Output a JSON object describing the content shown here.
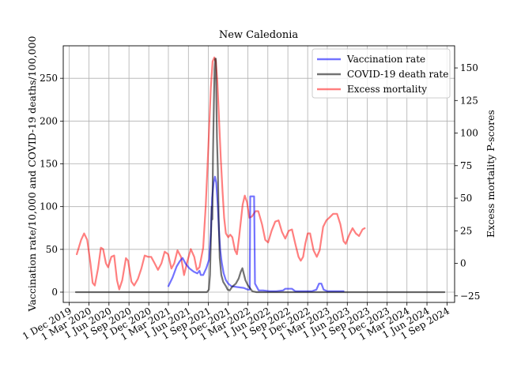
{
  "chart_data": {
    "type": "line",
    "title": "New Caledonia",
    "ylabel_left": "Vaccination rate/10,000 and COVID-19 deaths/100,000",
    "ylabel_right": "Excess mortality P-scores",
    "ylim_left": [
      -12,
      288
    ],
    "ylim_right": [
      -30,
      167
    ],
    "xlim": [
      "2019-11-04",
      "2024-10-06"
    ],
    "grid": true,
    "legend_position": "top-right",
    "x_ticks": [
      "2019-12-01",
      "2020-03-01",
      "2020-06-01",
      "2020-09-01",
      "2020-12-01",
      "2021-03-01",
      "2021-06-01",
      "2021-09-01",
      "2021-12-01",
      "2022-03-01",
      "2022-06-01",
      "2022-09-01",
      "2022-12-01",
      "2023-03-01",
      "2023-06-01",
      "2023-09-01",
      "2023-12-01",
      "2024-03-01",
      "2024-06-01",
      "2024-09-01"
    ],
    "x_tick_labels": [
      "1 Dec 2019",
      "1 Mar 2020",
      "1 Jun 2020",
      "1 Sep 2020",
      "1 Dec 2020",
      "1 Mar 2021",
      "1 Jun 2021",
      "1 Sep 2021",
      "1 Dec 2021",
      "1 Mar 2022",
      "1 Jun 2022",
      "1 Sep 2022",
      "1 Dec 2022",
      "1 Mar 2023",
      "1 Jun 2023",
      "1 Sep 2023",
      "1 Dec 2023",
      "1 Mar 2024",
      "1 Jun 2024",
      "1 Sep 2024"
    ],
    "y_ticks_left": [
      0,
      50,
      100,
      150,
      200,
      250
    ],
    "y_ticks_right": [
      -25,
      0,
      25,
      50,
      75,
      100,
      125,
      150
    ],
    "series": [
      {
        "name": "Vaccination rate",
        "axis": "left",
        "color": "#0000ff",
        "alpha": 0.55,
        "points": [
          [
            "2021-03-01",
            7
          ],
          [
            "2021-03-20",
            17
          ],
          [
            "2021-04-08",
            30
          ],
          [
            "2021-04-22",
            36
          ],
          [
            "2021-05-05",
            40
          ],
          [
            "2021-05-20",
            33
          ],
          [
            "2021-06-05",
            28
          ],
          [
            "2021-06-25",
            24
          ],
          [
            "2021-07-12",
            22
          ],
          [
            "2021-07-22",
            25
          ],
          [
            "2021-07-28",
            20
          ],
          [
            "2021-08-08",
            20
          ],
          [
            "2021-08-22",
            28
          ],
          [
            "2021-09-04",
            38
          ],
          [
            "2021-09-12",
            70
          ],
          [
            "2021-09-18",
            110
          ],
          [
            "2021-09-25",
            128
          ],
          [
            "2021-10-01",
            135
          ],
          [
            "2021-10-07",
            128
          ],
          [
            "2021-10-14",
            100
          ],
          [
            "2021-10-20",
            70
          ],
          [
            "2021-10-25",
            50
          ],
          [
            "2021-11-01",
            35
          ],
          [
            "2021-11-10",
            22
          ],
          [
            "2021-11-20",
            14
          ],
          [
            "2021-12-01",
            10
          ],
          [
            "2021-12-15",
            7
          ],
          [
            "2022-01-10",
            6
          ],
          [
            "2022-02-10",
            5
          ],
          [
            "2022-03-01",
            3
          ],
          [
            "2022-03-10",
            3
          ],
          [
            "2022-03-12",
            112
          ],
          [
            "2022-03-30",
            112
          ],
          [
            "2022-04-03",
            10
          ],
          [
            "2022-04-20",
            2
          ],
          [
            "2022-05-10",
            2
          ],
          [
            "2022-06-10",
            1
          ],
          [
            "2022-07-10",
            1
          ],
          [
            "2022-08-10",
            2
          ],
          [
            "2022-08-20",
            4
          ],
          [
            "2022-09-20",
            4
          ],
          [
            "2022-10-05",
            1
          ],
          [
            "2022-11-10",
            1
          ],
          [
            "2022-12-20",
            1
          ],
          [
            "2023-01-10",
            3
          ],
          [
            "2023-01-22",
            10
          ],
          [
            "2023-02-02",
            10
          ],
          [
            "2023-02-12",
            3
          ],
          [
            "2023-03-01",
            1
          ],
          [
            "2023-04-10",
            1
          ],
          [
            "2023-05-15",
            1
          ]
        ]
      },
      {
        "name": "COVID-19 death rate",
        "axis": "left",
        "color": "#000000",
        "alpha": 0.55,
        "points": [
          [
            "2020-01-01",
            0
          ],
          [
            "2020-09-01",
            0
          ],
          [
            "2021-03-01",
            0
          ],
          [
            "2021-08-25",
            0
          ],
          [
            "2021-09-03",
            3
          ],
          [
            "2021-09-08",
            20
          ],
          [
            "2021-09-12",
            60
          ],
          [
            "2021-09-16",
            100
          ],
          [
            "2021-09-19",
            85
          ],
          [
            "2021-09-22",
            160
          ],
          [
            "2021-09-26",
            220
          ],
          [
            "2021-09-29",
            260
          ],
          [
            "2021-10-02",
            273
          ],
          [
            "2021-10-05",
            273
          ],
          [
            "2021-10-07",
            240
          ],
          [
            "2021-10-10",
            180
          ],
          [
            "2021-10-14",
            145
          ],
          [
            "2021-10-18",
            85
          ],
          [
            "2021-10-23",
            40
          ],
          [
            "2021-10-30",
            20
          ],
          [
            "2021-11-08",
            12
          ],
          [
            "2021-11-20",
            7
          ],
          [
            "2021-11-28",
            3
          ],
          [
            "2021-12-08",
            2
          ],
          [
            "2021-12-18",
            6
          ],
          [
            "2022-01-05",
            10
          ],
          [
            "2022-01-18",
            16
          ],
          [
            "2022-01-28",
            24
          ],
          [
            "2022-02-04",
            28
          ],
          [
            "2022-02-10",
            22
          ],
          [
            "2022-02-18",
            14
          ],
          [
            "2022-03-01",
            8
          ],
          [
            "2022-03-10",
            5
          ],
          [
            "2022-03-22",
            1
          ],
          [
            "2022-04-10",
            0
          ],
          [
            "2022-06-01",
            0
          ],
          [
            "2022-12-01",
            0
          ],
          [
            "2023-06-01",
            0
          ],
          [
            "2023-12-01",
            0
          ],
          [
            "2024-06-01",
            0
          ],
          [
            "2024-08-20",
            0
          ]
        ]
      },
      {
        "name": "Excess mortality",
        "axis": "right",
        "color": "#ff0000",
        "alpha": 0.5,
        "points": [
          [
            "2020-01-05",
            7
          ],
          [
            "2020-01-25",
            18
          ],
          [
            "2020-02-08",
            23
          ],
          [
            "2020-02-22",
            18
          ],
          [
            "2020-03-08",
            0
          ],
          [
            "2020-03-18",
            -15
          ],
          [
            "2020-03-28",
            -17
          ],
          [
            "2020-04-12",
            -4
          ],
          [
            "2020-04-25",
            12
          ],
          [
            "2020-05-05",
            11
          ],
          [
            "2020-05-18",
            0
          ],
          [
            "2020-05-28",
            -3
          ],
          [
            "2020-06-12",
            5
          ],
          [
            "2020-06-25",
            6
          ],
          [
            "2020-07-08",
            -13
          ],
          [
            "2020-07-18",
            -20
          ],
          [
            "2020-08-01",
            -13
          ],
          [
            "2020-08-18",
            4
          ],
          [
            "2020-08-28",
            2
          ],
          [
            "2020-09-12",
            -14
          ],
          [
            "2020-09-25",
            -17
          ],
          [
            "2020-10-12",
            -12
          ],
          [
            "2020-10-28",
            -4
          ],
          [
            "2020-11-12",
            6
          ],
          [
            "2020-11-28",
            5
          ],
          [
            "2020-12-12",
            5
          ],
          [
            "2020-12-28",
            0
          ],
          [
            "2021-01-12",
            -5
          ],
          [
            "2021-01-28",
            0
          ],
          [
            "2021-02-12",
            9
          ],
          [
            "2021-02-28",
            7
          ],
          [
            "2021-03-15",
            -4
          ],
          [
            "2021-03-28",
            0
          ],
          [
            "2021-04-12",
            10
          ],
          [
            "2021-04-28",
            5
          ],
          [
            "2021-05-12",
            -9
          ],
          [
            "2021-05-28",
            2
          ],
          [
            "2021-06-12",
            11
          ],
          [
            "2021-06-28",
            5
          ],
          [
            "2021-07-10",
            -5
          ],
          [
            "2021-07-22",
            -3
          ],
          [
            "2021-08-08",
            12
          ],
          [
            "2021-08-20",
            45
          ],
          [
            "2021-09-01",
            90
          ],
          [
            "2021-09-12",
            135
          ],
          [
            "2021-09-20",
            155
          ],
          [
            "2021-09-28",
            158
          ],
          [
            "2021-10-05",
            155
          ],
          [
            "2021-10-12",
            140
          ],
          [
            "2021-10-20",
            110
          ],
          [
            "2021-10-28",
            80
          ],
          [
            "2021-11-05",
            55
          ],
          [
            "2021-11-12",
            35
          ],
          [
            "2021-11-20",
            23
          ],
          [
            "2021-12-01",
            20
          ],
          [
            "2021-12-10",
            22
          ],
          [
            "2021-12-20",
            20
          ],
          [
            "2022-01-01",
            10
          ],
          [
            "2022-01-10",
            7
          ],
          [
            "2022-01-20",
            20
          ],
          [
            "2022-02-05",
            45
          ],
          [
            "2022-02-15",
            52
          ],
          [
            "2022-02-25",
            47
          ],
          [
            "2022-03-08",
            35
          ],
          [
            "2022-03-20",
            36
          ],
          [
            "2022-04-05",
            40
          ],
          [
            "2022-04-18",
            40
          ],
          [
            "2022-05-05",
            30
          ],
          [
            "2022-05-20",
            18
          ],
          [
            "2022-06-02",
            16
          ],
          [
            "2022-06-18",
            25
          ],
          [
            "2022-07-05",
            32
          ],
          [
            "2022-07-20",
            33
          ],
          [
            "2022-08-05",
            24
          ],
          [
            "2022-08-20",
            19
          ],
          [
            "2022-09-05",
            25
          ],
          [
            "2022-09-20",
            26
          ],
          [
            "2022-10-05",
            15
          ],
          [
            "2022-10-20",
            5
          ],
          [
            "2022-10-30",
            2
          ],
          [
            "2022-11-10",
            5
          ],
          [
            "2022-11-20",
            15
          ],
          [
            "2022-12-01",
            23
          ],
          [
            "2022-12-12",
            23
          ],
          [
            "2022-12-28",
            10
          ],
          [
            "2023-01-12",
            5
          ],
          [
            "2023-01-25",
            10
          ],
          [
            "2023-02-10",
            28
          ],
          [
            "2023-02-25",
            33
          ],
          [
            "2023-03-10",
            35
          ],
          [
            "2023-03-28",
            38
          ],
          [
            "2023-04-15",
            38
          ],
          [
            "2023-04-30",
            30
          ],
          [
            "2023-05-15",
            17
          ],
          [
            "2023-05-25",
            15
          ],
          [
            "2023-06-10",
            22
          ],
          [
            "2023-06-25",
            27
          ],
          [
            "2023-07-10",
            23
          ],
          [
            "2023-07-25",
            21
          ],
          [
            "2023-08-10",
            26
          ],
          [
            "2023-08-20",
            27
          ]
        ]
      }
    ]
  }
}
